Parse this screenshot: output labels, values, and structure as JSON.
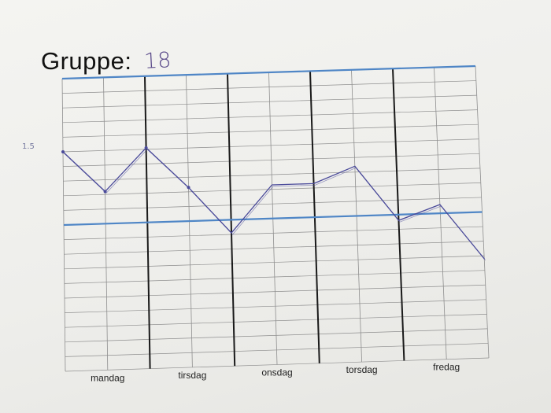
{
  "header": {
    "label": "Gruppe:",
    "value": "18"
  },
  "annotation": "1.5",
  "colors": {
    "grid": "#8e8e8e",
    "day_divider": "#1a1a1a",
    "reference_line": "#4f86c6",
    "pen": "#4a4a9a"
  },
  "chart_data": {
    "type": "line",
    "title": "Gruppe: 18",
    "xlabel": "",
    "ylabel": "",
    "categories": [
      "mandag",
      "tirsdag",
      "onsdag",
      "torsdag",
      "fredag"
    ],
    "x_divisions_per_day": 2,
    "grid_rows": 20,
    "grid": true,
    "reference_lines": [
      {
        "y": 20
      },
      {
        "y": 10
      }
    ],
    "ylim": [
      0,
      20
    ],
    "xlim": [
      0,
      10
    ],
    "series": [
      {
        "values": [
          {
            "x": 0.0,
            "y": 15.0
          },
          {
            "x": 1.0,
            "y": 12.2
          },
          {
            "x": 2.0,
            "y": 15.1
          },
          {
            "x": 3.0,
            "y": 12.3
          },
          {
            "x": 4.0,
            "y": 9.1
          },
          {
            "x": 5.0,
            "y": 12.3
          },
          {
            "x": 6.0,
            "y": 12.3
          },
          {
            "x": 7.0,
            "y": 13.4
          },
          {
            "x": 8.0,
            "y": 9.6
          },
          {
            "x": 9.0,
            "y": 10.6
          },
          {
            "x": 10.0,
            "y": 6.8
          }
        ]
      }
    ]
  }
}
